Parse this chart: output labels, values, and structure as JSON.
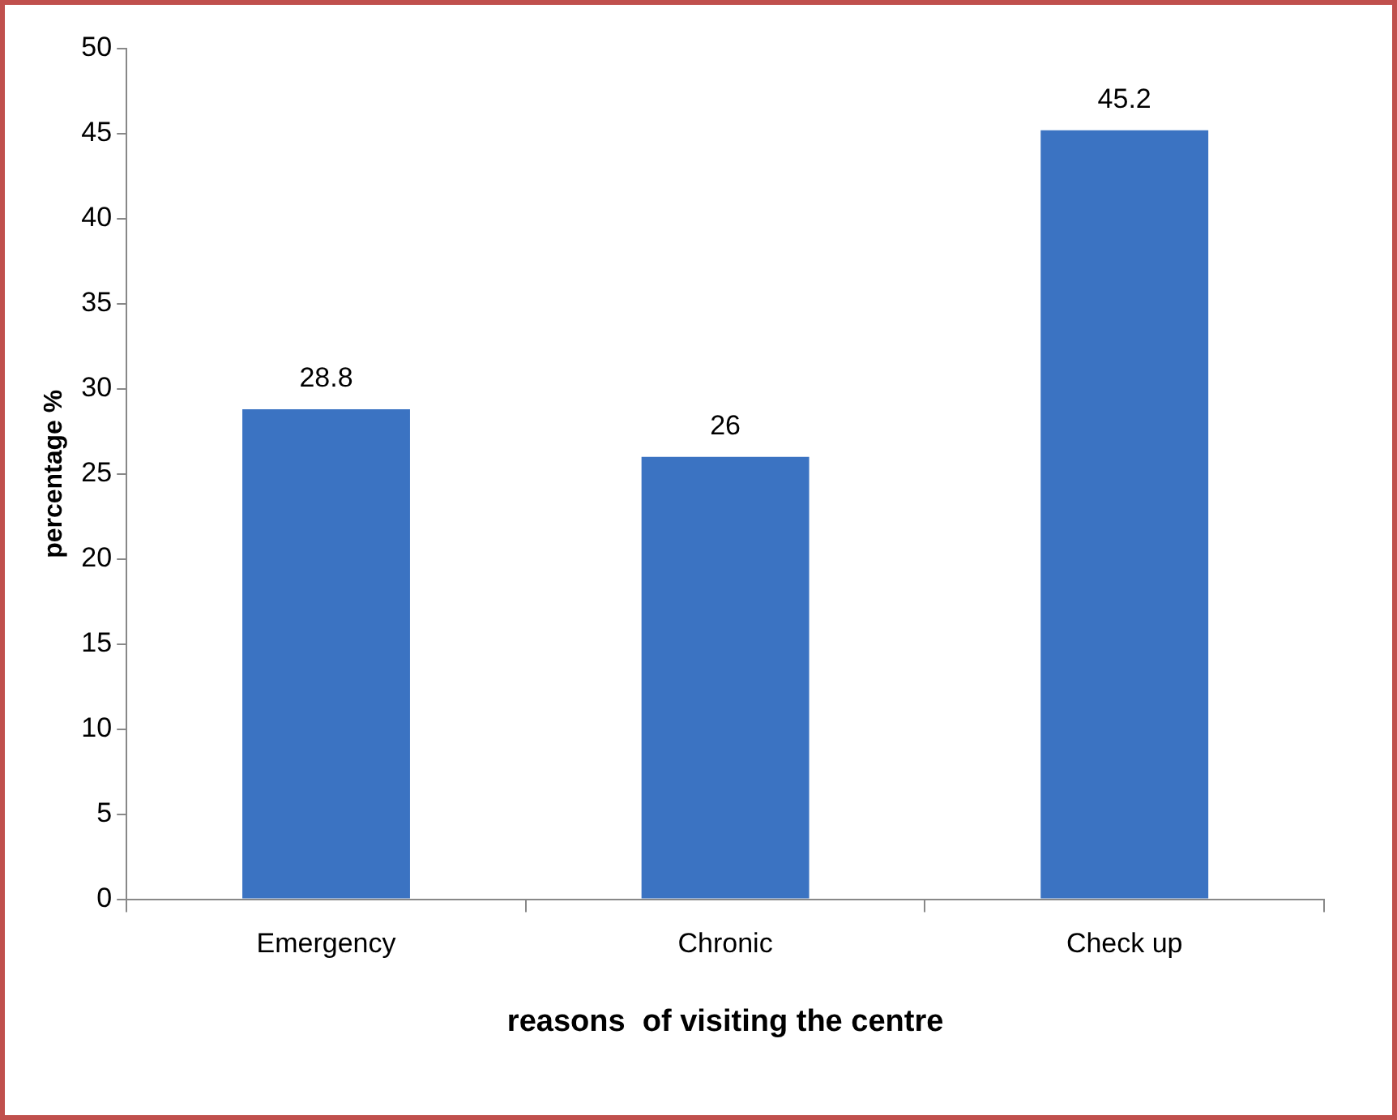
{
  "chart_data": {
    "type": "bar",
    "xlabel": "reasons  of visiting the centre",
    "ylabel": "percentage %",
    "categories": [
      "Emergency",
      "Chronic",
      "Check up"
    ],
    "values": [
      28.8,
      26,
      45.2
    ],
    "color": "#3b73c2",
    "ylim": [
      0,
      50
    ],
    "yticks": [
      0,
      5,
      10,
      15,
      20,
      25,
      30,
      35,
      40,
      45,
      50
    ],
    "grid": false,
    "legend": false,
    "data_labels": true
  }
}
